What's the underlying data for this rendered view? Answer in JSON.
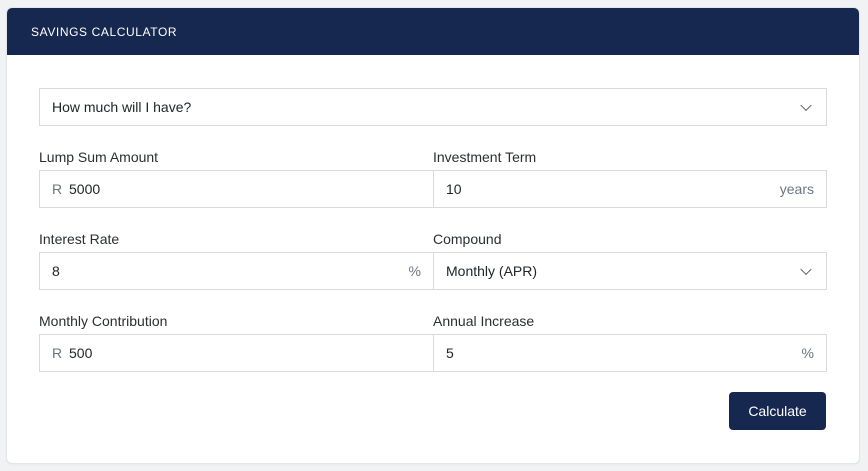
{
  "header": {
    "title": "SAVINGS CALCULATOR"
  },
  "calc_type": {
    "selected": "How much will I have?"
  },
  "lump_sum": {
    "label": "Lump Sum Amount",
    "prefix": "R",
    "value": "5000"
  },
  "term": {
    "label": "Investment Term",
    "value": "10",
    "suffix": "years"
  },
  "interest": {
    "label": "Interest Rate",
    "value": "8",
    "suffix": "%"
  },
  "compound": {
    "label": "Compound",
    "selected": "Monthly (APR)"
  },
  "monthly": {
    "label": "Monthly Contribution",
    "prefix": "R",
    "value": "500"
  },
  "increase": {
    "label": "Annual Increase",
    "value": "5",
    "suffix": "%"
  },
  "actions": {
    "calculate_label": "Calculate"
  },
  "colors": {
    "header_bg": "#16284f",
    "button_bg": "#16284f",
    "border": "#d7dbe0"
  }
}
